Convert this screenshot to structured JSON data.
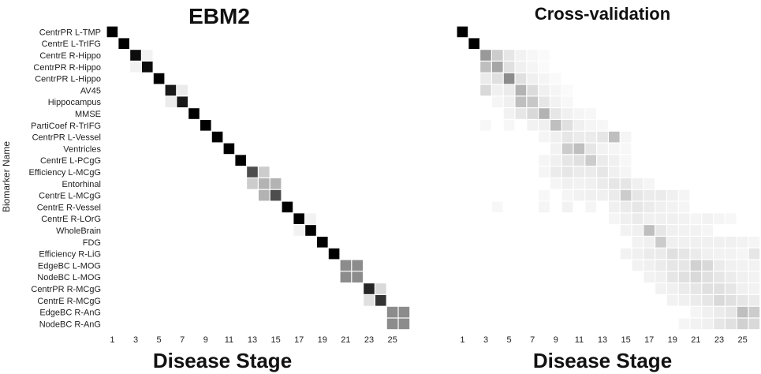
{
  "chart_data": [
    {
      "type": "heatmap",
      "title": "EBM2",
      "xlabel": "Disease Stage",
      "ylabel": "Biomarker Name",
      "x_ticks": [
        1,
        3,
        5,
        7,
        9,
        11,
        13,
        15,
        17,
        19,
        21,
        23,
        25
      ],
      "n_stages": 26,
      "colormap": "white-to-black (0 = white, 1 = black)",
      "rows": [
        "CentrPR L-TMP",
        "CentrE L-TrIFG",
        "CentrE R-Hippo",
        "CentrPR R-Hippo",
        "CentrPR L-Hippo",
        "AV45",
        "Hippocampus",
        "MMSE",
        "PartiCoef R-TrIFG",
        "CentrPR L-Vessel",
        "Ventricles",
        "CentrE L-PCgG",
        "Efficiency L-MCgG",
        "Entorhinal",
        "CentrE L-MCgG",
        "CentrE R-Vessel",
        "CentrE R-LOrG",
        "WholeBrain",
        "FDG",
        "Efficiency R-LiG",
        "EdgeBC L-MOG",
        "NodeBC L-MOG",
        "CentrPR R-MCgG",
        "CentrE R-MCgG",
        "EdgeBC R-AnG",
        "NodeBC R-AnG"
      ],
      "cells": [
        [
          0,
          1,
          1.0
        ],
        [
          1,
          2,
          1.0
        ],
        [
          2,
          3,
          0.95
        ],
        [
          2,
          4,
          0.05
        ],
        [
          3,
          3,
          0.05
        ],
        [
          3,
          4,
          0.95
        ],
        [
          4,
          5,
          1.0
        ],
        [
          5,
          6,
          0.9
        ],
        [
          5,
          7,
          0.08
        ],
        [
          6,
          6,
          0.08
        ],
        [
          6,
          7,
          0.9
        ],
        [
          7,
          8,
          1.0
        ],
        [
          8,
          9,
          1.0
        ],
        [
          9,
          10,
          1.0
        ],
        [
          10,
          11,
          1.0
        ],
        [
          11,
          12,
          1.0
        ],
        [
          12,
          13,
          0.7
        ],
        [
          12,
          14,
          0.2
        ],
        [
          13,
          13,
          0.2
        ],
        [
          13,
          14,
          0.3
        ],
        [
          13,
          15,
          0.3
        ],
        [
          14,
          14,
          0.3
        ],
        [
          14,
          15,
          0.7
        ],
        [
          15,
          16,
          1.0
        ],
        [
          16,
          17,
          1.0
        ],
        [
          16,
          18,
          0.05
        ],
        [
          17,
          17,
          0.05
        ],
        [
          17,
          18,
          1.0
        ],
        [
          18,
          19,
          1.0
        ],
        [
          19,
          20,
          1.0
        ],
        [
          20,
          21,
          0.45
        ],
        [
          20,
          22,
          0.45
        ],
        [
          21,
          21,
          0.45
        ],
        [
          21,
          22,
          0.45
        ],
        [
          22,
          23,
          0.85
        ],
        [
          22,
          24,
          0.15
        ],
        [
          23,
          23,
          0.12
        ],
        [
          23,
          24,
          0.8
        ],
        [
          24,
          25,
          0.45
        ],
        [
          24,
          26,
          0.45
        ],
        [
          25,
          25,
          0.45
        ],
        [
          25,
          26,
          0.45
        ]
      ]
    },
    {
      "type": "heatmap",
      "title": "Cross-validation",
      "xlabel": "Disease Stage",
      "x_ticks": [
        1,
        3,
        5,
        7,
        9,
        11,
        13,
        15,
        17,
        19,
        21,
        23,
        25
      ],
      "n_stages": 26,
      "colormap": "white-to-black (0 = white, 1 = black)",
      "cells": [
        [
          0,
          1,
          1.0
        ],
        [
          1,
          2,
          1.0
        ],
        [
          2,
          3,
          0.4
        ],
        [
          2,
          4,
          0.2
        ],
        [
          2,
          5,
          0.1
        ],
        [
          2,
          6,
          0.05
        ],
        [
          2,
          7,
          0.03
        ],
        [
          2,
          8,
          0.02
        ],
        [
          3,
          3,
          0.25
        ],
        [
          3,
          4,
          0.35
        ],
        [
          3,
          5,
          0.12
        ],
        [
          3,
          6,
          0.06
        ],
        [
          3,
          7,
          0.04
        ],
        [
          3,
          8,
          0.02
        ],
        [
          4,
          3,
          0.08
        ],
        [
          4,
          4,
          0.12
        ],
        [
          4,
          5,
          0.45
        ],
        [
          4,
          6,
          0.12
        ],
        [
          4,
          7,
          0.06
        ],
        [
          4,
          8,
          0.04
        ],
        [
          4,
          9,
          0.02
        ],
        [
          5,
          3,
          0.15
        ],
        [
          5,
          4,
          0.06
        ],
        [
          5,
          5,
          0.08
        ],
        [
          5,
          6,
          0.3
        ],
        [
          5,
          7,
          0.14
        ],
        [
          5,
          8,
          0.06
        ],
        [
          5,
          9,
          0.04
        ],
        [
          5,
          10,
          0.02
        ],
        [
          6,
          4,
          0.04
        ],
        [
          6,
          5,
          0.06
        ],
        [
          6,
          6,
          0.25
        ],
        [
          6,
          7,
          0.22
        ],
        [
          6,
          8,
          0.1
        ],
        [
          6,
          9,
          0.05
        ],
        [
          6,
          10,
          0.03
        ],
        [
          7,
          5,
          0.05
        ],
        [
          7,
          6,
          0.1
        ],
        [
          7,
          7,
          0.15
        ],
        [
          7,
          8,
          0.3
        ],
        [
          7,
          9,
          0.1
        ],
        [
          7,
          10,
          0.06
        ],
        [
          7,
          11,
          0.04
        ],
        [
          7,
          12,
          0.03
        ],
        [
          8,
          3,
          0.03
        ],
        [
          8,
          5,
          0.03
        ],
        [
          8,
          7,
          0.05
        ],
        [
          8,
          8,
          0.06
        ],
        [
          8,
          9,
          0.25
        ],
        [
          8,
          10,
          0.12
        ],
        [
          8,
          11,
          0.06
        ],
        [
          8,
          12,
          0.04
        ],
        [
          8,
          13,
          0.03
        ],
        [
          9,
          8,
          0.04
        ],
        [
          9,
          9,
          0.06
        ],
        [
          9,
          10,
          0.1
        ],
        [
          9,
          11,
          0.08
        ],
        [
          9,
          12,
          0.08
        ],
        [
          9,
          13,
          0.1
        ],
        [
          9,
          14,
          0.25
        ],
        [
          9,
          15,
          0.04
        ],
        [
          10,
          9,
          0.05
        ],
        [
          10,
          10,
          0.2
        ],
        [
          10,
          11,
          0.25
        ],
        [
          10,
          12,
          0.1
        ],
        [
          10,
          13,
          0.05
        ],
        [
          10,
          14,
          0.04
        ],
        [
          10,
          15,
          0.03
        ],
        [
          11,
          8,
          0.04
        ],
        [
          11,
          9,
          0.06
        ],
        [
          11,
          10,
          0.1
        ],
        [
          11,
          11,
          0.12
        ],
        [
          11,
          12,
          0.2
        ],
        [
          11,
          13,
          0.08
        ],
        [
          11,
          14,
          0.06
        ],
        [
          11,
          15,
          0.03
        ],
        [
          12,
          8,
          0.04
        ],
        [
          12,
          9,
          0.08
        ],
        [
          12,
          10,
          0.1
        ],
        [
          12,
          11,
          0.08
        ],
        [
          12,
          12,
          0.08
        ],
        [
          12,
          13,
          0.1
        ],
        [
          12,
          14,
          0.06
        ],
        [
          12,
          15,
          0.04
        ],
        [
          13,
          9,
          0.04
        ],
        [
          13,
          10,
          0.06
        ],
        [
          13,
          11,
          0.05
        ],
        [
          13,
          12,
          0.06
        ],
        [
          13,
          13,
          0.08
        ],
        [
          13,
          14,
          0.1
        ],
        [
          13,
          15,
          0.1
        ],
        [
          13,
          16,
          0.06
        ],
        [
          13,
          17,
          0.04
        ],
        [
          14,
          8,
          0.03
        ],
        [
          14,
          10,
          0.04
        ],
        [
          14,
          11,
          0.05
        ],
        [
          14,
          12,
          0.06
        ],
        [
          14,
          13,
          0.06
        ],
        [
          14,
          14,
          0.08
        ],
        [
          14,
          15,
          0.2
        ],
        [
          14,
          16,
          0.1
        ],
        [
          14,
          17,
          0.08
        ],
        [
          14,
          18,
          0.08
        ],
        [
          14,
          19,
          0.06
        ],
        [
          14,
          20,
          0.04
        ],
        [
          15,
          4,
          0.03
        ],
        [
          15,
          8,
          0.04
        ],
        [
          15,
          10,
          0.05
        ],
        [
          15,
          12,
          0.04
        ],
        [
          15,
          14,
          0.06
        ],
        [
          15,
          15,
          0.08
        ],
        [
          15,
          16,
          0.1
        ],
        [
          15,
          17,
          0.08
        ],
        [
          15,
          18,
          0.06
        ],
        [
          15,
          19,
          0.05
        ],
        [
          15,
          20,
          0.04
        ],
        [
          16,
          14,
          0.04
        ],
        [
          16,
          15,
          0.06
        ],
        [
          16,
          16,
          0.08
        ],
        [
          16,
          17,
          0.06
        ],
        [
          16,
          18,
          0.06
        ],
        [
          16,
          19,
          0.06
        ],
        [
          16,
          20,
          0.05
        ],
        [
          16,
          21,
          0.04
        ],
        [
          16,
          22,
          0.05
        ],
        [
          16,
          23,
          0.04
        ],
        [
          16,
          24,
          0.03
        ],
        [
          17,
          15,
          0.05
        ],
        [
          17,
          16,
          0.06
        ],
        [
          17,
          17,
          0.25
        ],
        [
          17,
          18,
          0.1
        ],
        [
          17,
          19,
          0.06
        ],
        [
          17,
          20,
          0.05
        ],
        [
          17,
          21,
          0.05
        ],
        [
          17,
          22,
          0.04
        ],
        [
          18,
          16,
          0.05
        ],
        [
          18,
          17,
          0.06
        ],
        [
          18,
          18,
          0.2
        ],
        [
          18,
          19,
          0.06
        ],
        [
          18,
          20,
          0.06
        ],
        [
          18,
          21,
          0.06
        ],
        [
          18,
          22,
          0.06
        ],
        [
          18,
          23,
          0.06
        ],
        [
          18,
          24,
          0.06
        ],
        [
          18,
          25,
          0.05
        ],
        [
          18,
          26,
          0.04
        ],
        [
          19,
          15,
          0.05
        ],
        [
          19,
          16,
          0.06
        ],
        [
          19,
          17,
          0.08
        ],
        [
          19,
          18,
          0.08
        ],
        [
          19,
          19,
          0.12
        ],
        [
          19,
          20,
          0.1
        ],
        [
          19,
          21,
          0.08
        ],
        [
          19,
          22,
          0.06
        ],
        [
          19,
          23,
          0.05
        ],
        [
          19,
          24,
          0.05
        ],
        [
          19,
          25,
          0.04
        ],
        [
          19,
          26,
          0.1
        ],
        [
          20,
          16,
          0.05
        ],
        [
          20,
          17,
          0.06
        ],
        [
          20,
          18,
          0.08
        ],
        [
          20,
          19,
          0.1
        ],
        [
          20,
          20,
          0.1
        ],
        [
          20,
          21,
          0.18
        ],
        [
          20,
          22,
          0.15
        ],
        [
          20,
          23,
          0.08
        ],
        [
          20,
          24,
          0.06
        ],
        [
          20,
          25,
          0.05
        ],
        [
          20,
          26,
          0.05
        ],
        [
          21,
          17,
          0.05
        ],
        [
          21,
          18,
          0.06
        ],
        [
          21,
          19,
          0.1
        ],
        [
          21,
          20,
          0.12
        ],
        [
          21,
          21,
          0.15
        ],
        [
          21,
          22,
          0.12
        ],
        [
          21,
          23,
          0.1
        ],
        [
          21,
          24,
          0.08
        ],
        [
          21,
          25,
          0.06
        ],
        [
          21,
          26,
          0.05
        ],
        [
          22,
          18,
          0.05
        ],
        [
          22,
          19,
          0.06
        ],
        [
          22,
          20,
          0.08
        ],
        [
          22,
          21,
          0.1
        ],
        [
          22,
          22,
          0.12
        ],
        [
          22,
          23,
          0.12
        ],
        [
          22,
          24,
          0.1
        ],
        [
          22,
          25,
          0.06
        ],
        [
          22,
          26,
          0.05
        ],
        [
          23,
          19,
          0.05
        ],
        [
          23,
          20,
          0.06
        ],
        [
          23,
          21,
          0.08
        ],
        [
          23,
          22,
          0.1
        ],
        [
          23,
          23,
          0.15
        ],
        [
          23,
          24,
          0.12
        ],
        [
          23,
          25,
          0.1
        ],
        [
          23,
          26,
          0.08
        ],
        [
          24,
          21,
          0.04
        ],
        [
          24,
          22,
          0.06
        ],
        [
          24,
          23,
          0.08
        ],
        [
          24,
          24,
          0.1
        ],
        [
          24,
          25,
          0.25
        ],
        [
          24,
          26,
          0.2
        ],
        [
          25,
          20,
          0.04
        ],
        [
          25,
          21,
          0.05
        ],
        [
          25,
          22,
          0.06
        ],
        [
          25,
          23,
          0.1
        ],
        [
          25,
          24,
          0.12
        ],
        [
          25,
          25,
          0.18
        ],
        [
          25,
          26,
          0.15
        ]
      ]
    }
  ]
}
